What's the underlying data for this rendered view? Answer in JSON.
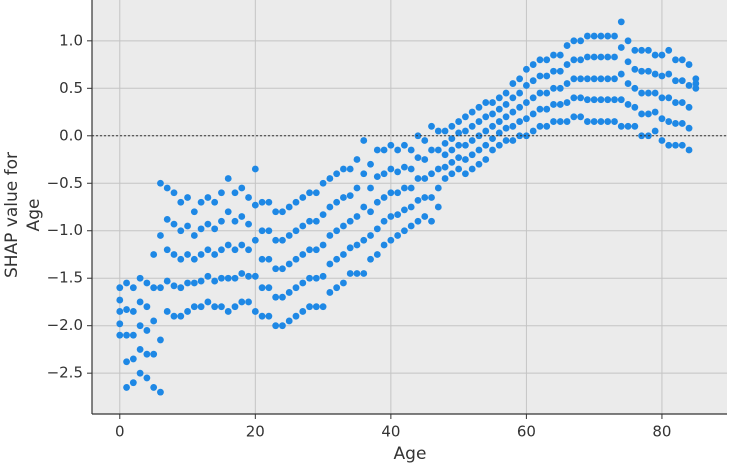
{
  "chart_data": {
    "type": "scatter",
    "xlabel": "Age",
    "ylabel": [
      "SHAP value for",
      "Age"
    ],
    "xlim": [
      -4.1,
      89.6
    ],
    "ylim": [
      -2.93,
      1.43
    ],
    "xticks": [
      0,
      20,
      40,
      60,
      80
    ],
    "yticks": [
      {
        "value": 1,
        "label": "1.0"
      },
      0.5,
      {
        "value": 0,
        "label": "0.0"
      },
      {
        "value": -0.5,
        "label": "−0.5"
      },
      {
        "value": -1,
        "label": "−1.0"
      },
      {
        "value": -1.5,
        "label": "−1.5"
      },
      {
        "value": -2,
        "label": "−2.0"
      },
      {
        "value": -2.5,
        "label": "−2.5"
      }
    ],
    "grid": true,
    "hline": 0,
    "color": "#1e88e5",
    "x": [
      0,
      1,
      2,
      3,
      4,
      5,
      6,
      7,
      8,
      9,
      10,
      11,
      12,
      13,
      14,
      15,
      16,
      17,
      18,
      19,
      20,
      21,
      22,
      23,
      24,
      25,
      26,
      27,
      28,
      29,
      30,
      31,
      32,
      33,
      34,
      35,
      36,
      37,
      38,
      39,
      40,
      41,
      42,
      43,
      44,
      45,
      46,
      47,
      48,
      49,
      50,
      51,
      52,
      53,
      54,
      55,
      56,
      57,
      58,
      59,
      60,
      61,
      62,
      63,
      64,
      65,
      66,
      67,
      68,
      69,
      70,
      71,
      72,
      73,
      74,
      75,
      76,
      77,
      78,
      79,
      80,
      81,
      82,
      83,
      84,
      85
    ],
    "y": [
      [
        -2.1,
        -1.98,
        -1.85,
        -1.73,
        -1.6
      ],
      [
        -2.65,
        -2.38,
        -2.1,
        -1.83,
        -1.55
      ],
      [
        -2.6,
        -2.35,
        -2.1,
        -1.85,
        -1.6
      ],
      [
        -2.5,
        -2.25,
        -2.0,
        -1.75,
        -1.5
      ],
      [
        -2.55,
        -2.3,
        -2.05,
        -1.8,
        -1.55
      ],
      [
        -2.65,
        -2.3,
        -1.95,
        -1.6,
        -1.25
      ],
      [
        -2.7,
        -2.15,
        -1.6,
        -1.05,
        -0.5
      ],
      [
        -1.85,
        -1.53,
        -1.2,
        -0.88,
        -0.55
      ],
      [
        -1.9,
        -1.58,
        -1.25,
        -0.93,
        -0.6
      ],
      [
        -1.9,
        -1.6,
        -1.3,
        -1.0,
        -0.7
      ],
      [
        -1.85,
        -1.55,
        -1.25,
        -0.95,
        -0.65
      ],
      [
        -1.8,
        -1.55,
        -1.3,
        -1.05,
        -0.8
      ],
      [
        -1.8,
        -1.53,
        -1.25,
        -0.98,
        -0.7
      ],
      [
        -1.75,
        -1.48,
        -1.2,
        -0.93,
        -0.65
      ],
      [
        -1.8,
        -1.53,
        -1.25,
        -0.98,
        -0.7
      ],
      [
        -1.8,
        -1.5,
        -1.2,
        -0.9,
        -0.6
      ],
      [
        -1.85,
        -1.5,
        -1.15,
        -0.8,
        -0.45
      ],
      [
        -1.8,
        -1.5,
        -1.2,
        -0.9,
        -0.6
      ],
      [
        -1.75,
        -1.45,
        -1.15,
        -0.85,
        -0.55
      ],
      [
        -1.75,
        -1.48,
        -1.2,
        -0.93,
        -0.65
      ],
      [
        -1.85,
        -1.48,
        -1.1,
        -0.73,
        -0.35
      ],
      [
        -1.9,
        -1.6,
        -1.3,
        -1.0,
        -0.7
      ],
      [
        -1.9,
        -1.6,
        -1.3,
        -1.0,
        -0.7
      ],
      [
        -2.0,
        -1.7,
        -1.4,
        -1.1,
        -0.8
      ],
      [
        -2.0,
        -1.7,
        -1.4,
        -1.1,
        -0.8
      ],
      [
        -1.95,
        -1.65,
        -1.35,
        -1.05,
        -0.75
      ],
      [
        -1.9,
        -1.6,
        -1.3,
        -1.0,
        -0.7
      ],
      [
        -1.85,
        -1.55,
        -1.25,
        -0.95,
        -0.65
      ],
      [
        -1.8,
        -1.5,
        -1.2,
        -0.9,
        -0.6
      ],
      [
        -1.8,
        -1.5,
        -1.2,
        -0.9,
        -0.6
      ],
      [
        -1.8,
        -1.48,
        -1.15,
        -0.83,
        -0.5
      ],
      [
        -1.65,
        -1.35,
        -1.05,
        -0.75,
        -0.45
      ],
      [
        -1.6,
        -1.3,
        -1.0,
        -0.7,
        -0.4
      ],
      [
        -1.55,
        -1.25,
        -0.95,
        -0.65,
        -0.35
      ],
      [
        -1.45,
        -1.18,
        -0.9,
        -0.63,
        -0.35
      ],
      [
        -1.45,
        -1.15,
        -0.85,
        -0.55,
        -0.25
      ],
      [
        -1.45,
        -1.1,
        -0.75,
        -0.4,
        -0.05
      ],
      [
        -1.3,
        -1.05,
        -0.8,
        -0.55,
        -0.3
      ],
      [
        -1.25,
        -0.98,
        -0.7,
        -0.43,
        -0.15
      ],
      [
        -1.15,
        -0.9,
        -0.65,
        -0.4,
        -0.15
      ],
      [
        -1.1,
        -0.85,
        -0.6,
        -0.35,
        -0.1
      ],
      [
        -1.05,
        -0.83,
        -0.6,
        -0.38,
        -0.15
      ],
      [
        -1.0,
        -0.78,
        -0.55,
        -0.33,
        -0.1
      ],
      [
        -0.95,
        -0.75,
        -0.55,
        -0.35,
        -0.15
      ],
      [
        -0.9,
        -0.68,
        -0.45,
        -0.23,
        0.0
      ],
      [
        -0.85,
        -0.65,
        -0.45,
        -0.25,
        -0.05
      ],
      [
        -0.9,
        -0.65,
        -0.4,
        -0.15,
        0.1
      ],
      [
        -0.75,
        -0.55,
        -0.35,
        -0.15,
        0.05
      ],
      [
        -0.45,
        -0.33,
        -0.2,
        -0.08,
        0.05
      ],
      [
        -0.4,
        -0.28,
        -0.15,
        -0.03,
        0.1
      ],
      [
        -0.35,
        -0.23,
        -0.1,
        0.03,
        0.15
      ],
      [
        -0.4,
        -0.25,
        -0.1,
        0.05,
        0.2
      ],
      [
        -0.35,
        -0.2,
        -0.05,
        0.1,
        0.25
      ],
      [
        -0.3,
        -0.15,
        0,
        0.15,
        0.3
      ],
      [
        -0.25,
        -0.1,
        0.05,
        0.2,
        0.35
      ],
      [
        -0.15,
        -0.03,
        0.1,
        0.23,
        0.35
      ],
      [
        -0.1,
        0.03,
        0.15,
        0.28,
        0.4
      ],
      [
        -0.05,
        0.08,
        0.2,
        0.33,
        0.45
      ],
      [
        -0.05,
        0.1,
        0.25,
        0.4,
        0.55
      ],
      [
        0,
        0.15,
        0.3,
        0.45,
        0.6
      ],
      [
        0,
        0.18,
        0.35,
        0.53,
        0.7
      ],
      [
        0.05,
        0.23,
        0.4,
        0.58,
        0.75
      ],
      [
        0.1,
        0.28,
        0.45,
        0.63,
        0.8
      ],
      [
        0.1,
        0.28,
        0.45,
        0.63,
        0.8
      ],
      [
        0.15,
        0.33,
        0.5,
        0.68,
        0.85
      ],
      [
        0.15,
        0.33,
        0.5,
        0.68,
        0.85
      ],
      [
        0.15,
        0.35,
        0.55,
        0.75,
        0.95
      ],
      [
        0.2,
        0.4,
        0.6,
        0.8,
        1.0
      ],
      [
        0.2,
        0.4,
        0.6,
        0.8,
        1.0
      ],
      [
        0.15,
        0.38,
        0.6,
        0.83,
        1.05
      ],
      [
        0.15,
        0.38,
        0.6,
        0.83,
        1.05
      ],
      [
        0.15,
        0.38,
        0.6,
        0.83,
        1.05
      ],
      [
        0.15,
        0.38,
        0.6,
        0.83,
        1.05
      ],
      [
        0.15,
        0.38,
        0.6,
        0.83,
        1.05
      ],
      [
        0.1,
        0.38,
        0.65,
        0.93,
        1.2
      ],
      [
        0.1,
        0.33,
        0.55,
        0.78,
        1.0
      ],
      [
        0.1,
        0.3,
        0.5,
        0.7,
        0.9
      ],
      [
        0,
        0.23,
        0.45,
        0.68,
        0.9
      ],
      [
        0,
        0.23,
        0.45,
        0.68,
        0.9
      ],
      [
        0.05,
        0.25,
        0.45,
        0.65,
        0.85
      ],
      [
        -0.05,
        0.18,
        0.4,
        0.63,
        0.85
      ],
      [
        -0.1,
        0.15,
        0.4,
        0.65,
        0.9
      ],
      [
        -0.1,
        0.13,
        0.35,
        0.58,
        0.8
      ],
      [
        -0.1,
        0.13,
        0.35,
        0.58,
        0.8
      ],
      [
        -0.15,
        0.08,
        0.3,
        0.53,
        0.75
      ],
      [
        0.5,
        0.55,
        0.6
      ]
    ]
  }
}
